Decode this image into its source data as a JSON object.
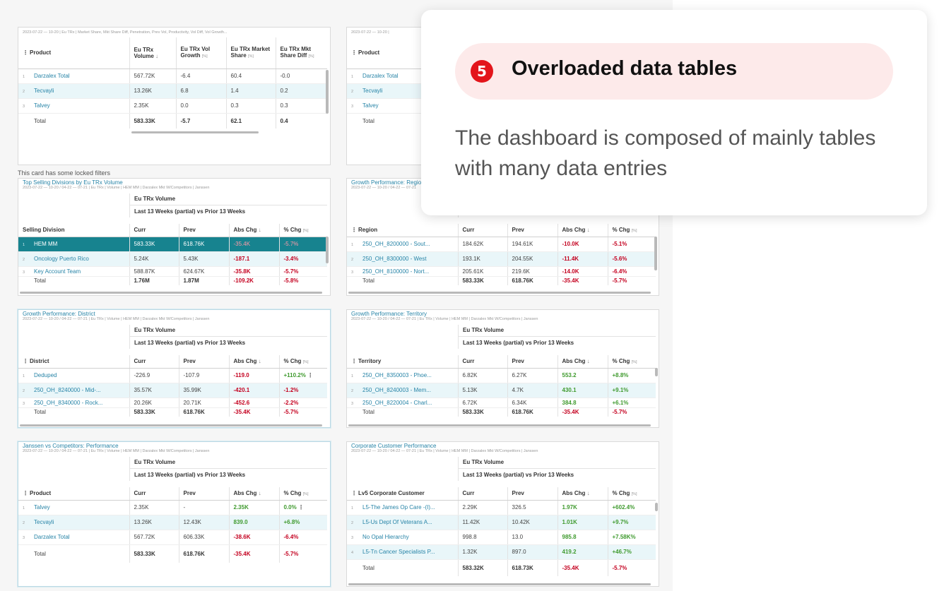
{
  "locked_note": "This card has some locked filters",
  "top_left": {
    "meta": "2023-07-22 — 10-20 | Eu TRx | Market Share, Mkt Share Diff, Penetration, Prev Vol, Productivity, Vol Diff, Vol Growth...",
    "headers": [
      "Product",
      "Eu TRx Volume",
      "Eu TRx Vol Growth",
      "Eu TRx Market Share",
      "Eu TRx Mkt Share Diff"
    ],
    "unit": "[%]",
    "rows": [
      [
        "1",
        "Darzalex Total",
        "567.72K",
        "-6.4",
        "60.4",
        "-0.0"
      ],
      [
        "2",
        "Tecvayli",
        "13.26K",
        "6.8",
        "1.4",
        "0.2"
      ],
      [
        "3",
        "Talvey",
        "2.35K",
        "0.0",
        "0.3",
        "0.3"
      ]
    ],
    "total": [
      "Total",
      "583.33K",
      "-5.7",
      "62.1",
      "0.4"
    ]
  },
  "top_right": {
    "meta": "2023-07-22 — 10-20 |",
    "header": "Product",
    "rows": [
      [
        "1",
        "Darzalex Total"
      ],
      [
        "2",
        "Tecvayli"
      ],
      [
        "3",
        "Talvey"
      ]
    ],
    "total": "Total"
  },
  "common": {
    "metric": "Eu TRx Volume",
    "period": "Last 13 Weeks (partial) vs Prior 13 Weeks",
    "cols": [
      "Curr",
      "Prev",
      "Abs Chg",
      "% Chg"
    ],
    "pct_unit": "[%]"
  },
  "selling": {
    "title": "Top Selling Divisions by Eu TRx Volume",
    "meta": "2023-07-22 — 10-20 / 04-22 — 07-21 | Eu TRx | Volume | HEM MM | Darzalex Mkt W/Competitors | Janssen",
    "dim": "Selling Division",
    "rows": [
      [
        "1",
        "HEM MM",
        "583.33K",
        "618.76K",
        "-35.4K",
        "-5.7%"
      ],
      [
        "2",
        "Oncology Puerto Rico",
        "5.24K",
        "5.43K",
        "-187.1",
        "-3.4%"
      ],
      [
        "3",
        "Key Account Team",
        "588.87K",
        "624.67K",
        "-35.8K",
        "-5.7%"
      ]
    ],
    "total": [
      "Total",
      "1.76M",
      "1.87M",
      "-109.2K",
      "-5.8%"
    ]
  },
  "region": {
    "title": "Growth Performance: Region",
    "meta": "2023-07-22 — 10-20 / 04-22 — 07-21",
    "dim": "Region",
    "rows": [
      [
        "1",
        "250_OH_8200000 - Sout...",
        "184.62K",
        "194.61K",
        "-10.0K",
        "-5.1%"
      ],
      [
        "2",
        "250_OH_8300000 - West",
        "193.1K",
        "204.55K",
        "-11.4K",
        "-5.6%"
      ],
      [
        "3",
        "250_OH_8100000 - Nort...",
        "205.61K",
        "219.6K",
        "-14.0K",
        "-6.4%"
      ]
    ],
    "total": [
      "Total",
      "583.33K",
      "618.76K",
      "-35.4K",
      "-5.7%"
    ]
  },
  "district": {
    "title": "Growth Performance: District",
    "meta": "2023-07-22 — 10-20 / 04-22 — 07-21 | Eu TRx | Volume | HEM MM | Darzalex Mkt W/Competitors | Janssen",
    "dim": "District",
    "rows": [
      [
        "1",
        "Deduped",
        "-226.9",
        "-107.9",
        "-119.0",
        "+110.2%"
      ],
      [
        "2",
        "250_OH_8240000 - Mid-...",
        "35.57K",
        "35.99K",
        "-420.1",
        "-1.2%"
      ],
      [
        "3",
        "250_OH_8340000 - Rock...",
        "20.26K",
        "20.71K",
        "-452.6",
        "-2.2%"
      ]
    ],
    "total": [
      "Total",
      "583.33K",
      "618.76K",
      "-35.4K",
      "-5.7%"
    ]
  },
  "territory": {
    "title": "Growth Performance: Territory",
    "meta": "2023-07-22 — 10-20 / 04-22 — 07-21 | Eu TRx | Volume | HEM MM | Darzalex Mkt W/Competitors | Janssen",
    "dim": "Territory",
    "rows": [
      [
        "1",
        "250_OH_8350003 - Phoe...",
        "6.82K",
        "6.27K",
        "553.2",
        "+8.8%"
      ],
      [
        "2",
        "250_OH_8240003 - Mem...",
        "5.13K",
        "4.7K",
        "430.1",
        "+9.1%"
      ],
      [
        "3",
        "250_OH_8220004 - Charl...",
        "6.72K",
        "6.34K",
        "384.8",
        "+6.1%"
      ]
    ],
    "total": [
      "Total",
      "583.33K",
      "618.76K",
      "-35.4K",
      "-5.7%"
    ]
  },
  "janssen": {
    "title": "Janssen vs Competitors: Performance",
    "meta": "2023-07-22 — 10-20 / 04-22 — 07-21 | Eu TRx | Volume | HEM MM | Darzalex Mkt W/Competitors | Janssen",
    "dim": "Product",
    "rows": [
      [
        "1",
        "Talvey",
        "2.35K",
        "-",
        "2.35K",
        "0.0%"
      ],
      [
        "2",
        "Tecvayli",
        "13.26K",
        "12.43K",
        "839.0",
        "+6.8%"
      ],
      [
        "3",
        "Darzalex Total",
        "567.72K",
        "606.33K",
        "-38.6K",
        "-6.4%"
      ]
    ],
    "total": [
      "Total",
      "583.33K",
      "618.76K",
      "-35.4K",
      "-5.7%"
    ]
  },
  "corporate": {
    "title": "Corporate Customer Performance",
    "meta": "2023-07-22 — 10-20 / 04-22 — 07-21 | Eu TRx | Volume | HEM MM | Darzalex Mkt W/Competitors | Janssen",
    "dim": "Lv5 Corporate Customer",
    "rows": [
      [
        "1",
        "L5-The James Op Care -(I)...",
        "2.29K",
        "326.5",
        "1.97K",
        "+602.4%"
      ],
      [
        "2",
        "L5-Us Dept Of Veterans A...",
        "11.42K",
        "10.42K",
        "1.01K",
        "+9.7%"
      ],
      [
        "3",
        "No Opal Hierarchy",
        "998.8",
        "13.0",
        "985.8",
        "+7.58K%"
      ],
      [
        "4",
        "L5-Tn Cancer Specialists P...",
        "1.32K",
        "897.0",
        "419.2",
        "+46.7%"
      ]
    ],
    "total": [
      "Total",
      "583.32K",
      "618.73K",
      "-35.4K",
      "-5.7%"
    ]
  },
  "callout": {
    "number": "5",
    "title": "Overloaded data tables",
    "body": "The dashboard is composed of mainly tables with many data entries",
    "accent": "#e3151b",
    "pill_bg": "#fdeaea"
  }
}
